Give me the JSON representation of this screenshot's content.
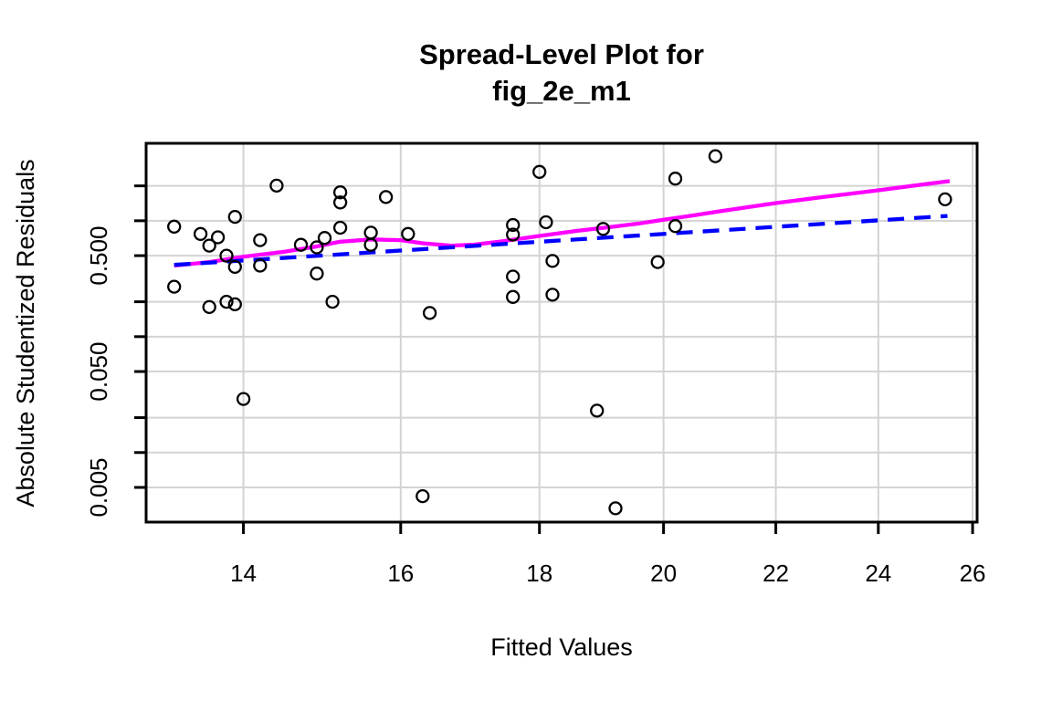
{
  "chart": {
    "title_line1": "Spread-Level Plot for",
    "title_line2": "fig_2e_m1",
    "xlabel": "Fitted Values",
    "ylabel": "Absolute Studentized Residuals"
  },
  "chart_data": {
    "type": "scatter",
    "title": "Spread-Level Plot for fig_2e_m1",
    "xlabel": "Fitted Values",
    "ylabel": "Absolute Studentized Residuals",
    "x_scale": "log",
    "y_scale": "log",
    "xlim": [
      12.89,
      26.1
    ],
    "ylim": [
      0.00251,
      4.66
    ],
    "x_ticks": {
      "values": [
        14,
        16,
        18,
        20,
        22,
        24,
        26
      ],
      "labels": [
        "14",
        "16",
        "18",
        "20",
        "22",
        "24",
        "26"
      ]
    },
    "y_ticks": {
      "values": [
        2,
        1,
        0.5,
        0.2,
        0.1,
        0.05,
        0.02,
        0.01,
        0.005
      ],
      "labels": [
        "",
        "",
        "0.500",
        "",
        "",
        "0.050",
        "",
        "",
        "0.005"
      ]
    },
    "grid": true,
    "legend": "none",
    "colors": {
      "points": "#000000",
      "lowess": "#ff00ff",
      "fit": "#0000ff",
      "grid": "#d3d3d3"
    },
    "points": [
      [
        13.2,
        0.89
      ],
      [
        13.2,
        0.27
      ],
      [
        13.5,
        0.77
      ],
      [
        13.6,
        0.61
      ],
      [
        13.6,
        0.18
      ],
      [
        13.7,
        0.72
      ],
      [
        13.8,
        0.5
      ],
      [
        13.8,
        0.2
      ],
      [
        13.9,
        1.08
      ],
      [
        13.9,
        0.4
      ],
      [
        13.9,
        0.19
      ],
      [
        14.0,
        0.029
      ],
      [
        14.2,
        0.68
      ],
      [
        14.2,
        0.41
      ],
      [
        14.4,
        2.01
      ],
      [
        14.7,
        0.62
      ],
      [
        14.9,
        0.59
      ],
      [
        14.9,
        0.35
      ],
      [
        15.0,
        0.71
      ],
      [
        15.1,
        0.2
      ],
      [
        15.2,
        1.76
      ],
      [
        15.2,
        1.44
      ],
      [
        15.2,
        0.87
      ],
      [
        15.6,
        0.79
      ],
      [
        15.6,
        0.62
      ],
      [
        15.8,
        1.6
      ],
      [
        16.1,
        0.77
      ],
      [
        16.3,
        0.0042
      ],
      [
        16.4,
        0.16
      ],
      [
        17.6,
        0.92
      ],
      [
        17.6,
        0.76
      ],
      [
        17.6,
        0.33
      ],
      [
        17.6,
        0.22
      ],
      [
        18.0,
        2.64
      ],
      [
        18.1,
        0.97
      ],
      [
        18.2,
        0.45
      ],
      [
        18.2,
        0.23
      ],
      [
        18.9,
        0.023
      ],
      [
        19.0,
        0.85
      ],
      [
        19.2,
        0.0033
      ],
      [
        19.9,
        0.44
      ],
      [
        20.2,
        2.31
      ],
      [
        20.2,
        0.9
      ],
      [
        20.9,
        3.61
      ],
      [
        25.4,
        1.53
      ]
    ],
    "series": [
      {
        "name": "lowess-smooth",
        "type": "line",
        "color": "#ff00ff",
        "dash": "solid",
        "points": [
          [
            13.2,
            0.41
          ],
          [
            13.6,
            0.44
          ],
          [
            14.0,
            0.49
          ],
          [
            14.5,
            0.54
          ],
          [
            14.9,
            0.6
          ],
          [
            15.2,
            0.66
          ],
          [
            15.6,
            0.69
          ],
          [
            16.0,
            0.68
          ],
          [
            16.3,
            0.64
          ],
          [
            16.7,
            0.61
          ],
          [
            17.0,
            0.62
          ],
          [
            17.4,
            0.66
          ],
          [
            18.0,
            0.74
          ],
          [
            18.6,
            0.82
          ],
          [
            19.1,
            0.88
          ],
          [
            19.6,
            0.95
          ],
          [
            20.0,
            1.02
          ],
          [
            20.5,
            1.11
          ],
          [
            21.0,
            1.21
          ],
          [
            22.0,
            1.42
          ],
          [
            22.9,
            1.6
          ],
          [
            24.0,
            1.83
          ],
          [
            24.7,
            2.0
          ],
          [
            25.5,
            2.2
          ]
        ]
      },
      {
        "name": "power-fit",
        "type": "line",
        "color": "#0000ff",
        "dash": "dashed",
        "points": [
          [
            13.2,
            0.416
          ],
          [
            25.45,
            1.1
          ]
        ]
      }
    ]
  }
}
